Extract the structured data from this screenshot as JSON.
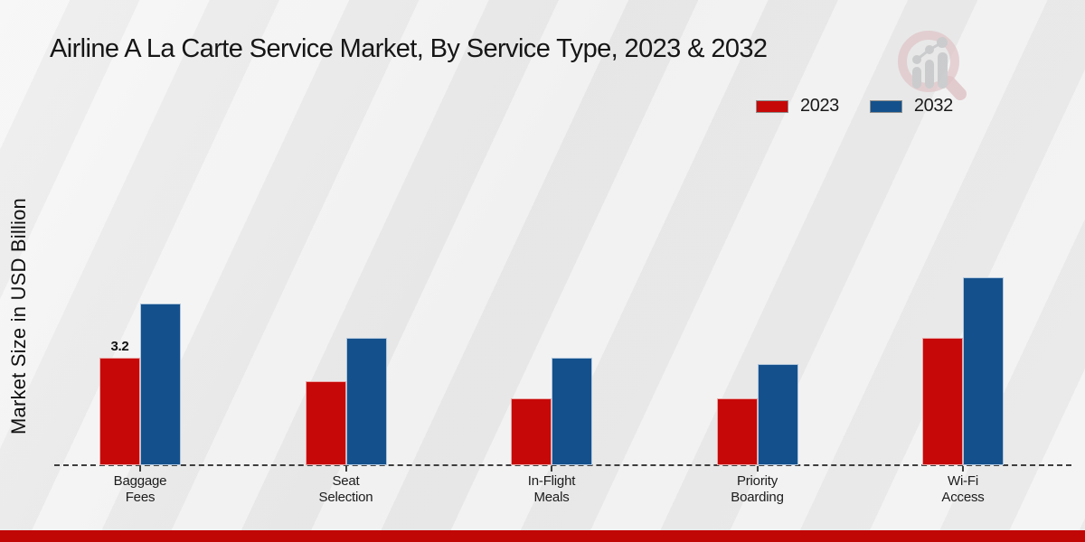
{
  "title": "Airline A La Carte Service Market, By Service Type, 2023 & 2032",
  "footer": {
    "band_color": "#c10606"
  },
  "legend": {
    "items": [
      {
        "label": "2023"
      },
      {
        "label": "2032"
      }
    ]
  },
  "chart_data": {
    "type": "bar",
    "title": "Airline A La Carte Service Market, By Service Type, 2023 & 2032",
    "xlabel": "",
    "ylabel": "Market Size in USD Billion",
    "categories": [
      "Baggage Fees",
      "Seat Selection",
      "In-Flight Meals",
      "Priority Boarding",
      "Wi-Fi Access"
    ],
    "series": [
      {
        "name": "2023",
        "color": "#c70808",
        "values": [
          3.2,
          2.5,
          2.0,
          2.0,
          3.8
        ]
      },
      {
        "name": "2032",
        "color": "#14518c",
        "values": [
          4.8,
          3.8,
          3.2,
          3.0,
          5.6
        ]
      }
    ],
    "value_labels": [
      {
        "category_index": 0,
        "series_index": 0,
        "text": "3.2"
      }
    ],
    "ylim": [
      0,
      6.5
    ],
    "grid": false,
    "legend_position": "top-right",
    "baseline_style": "dashed",
    "y_axis_ticks_visible": false
  }
}
